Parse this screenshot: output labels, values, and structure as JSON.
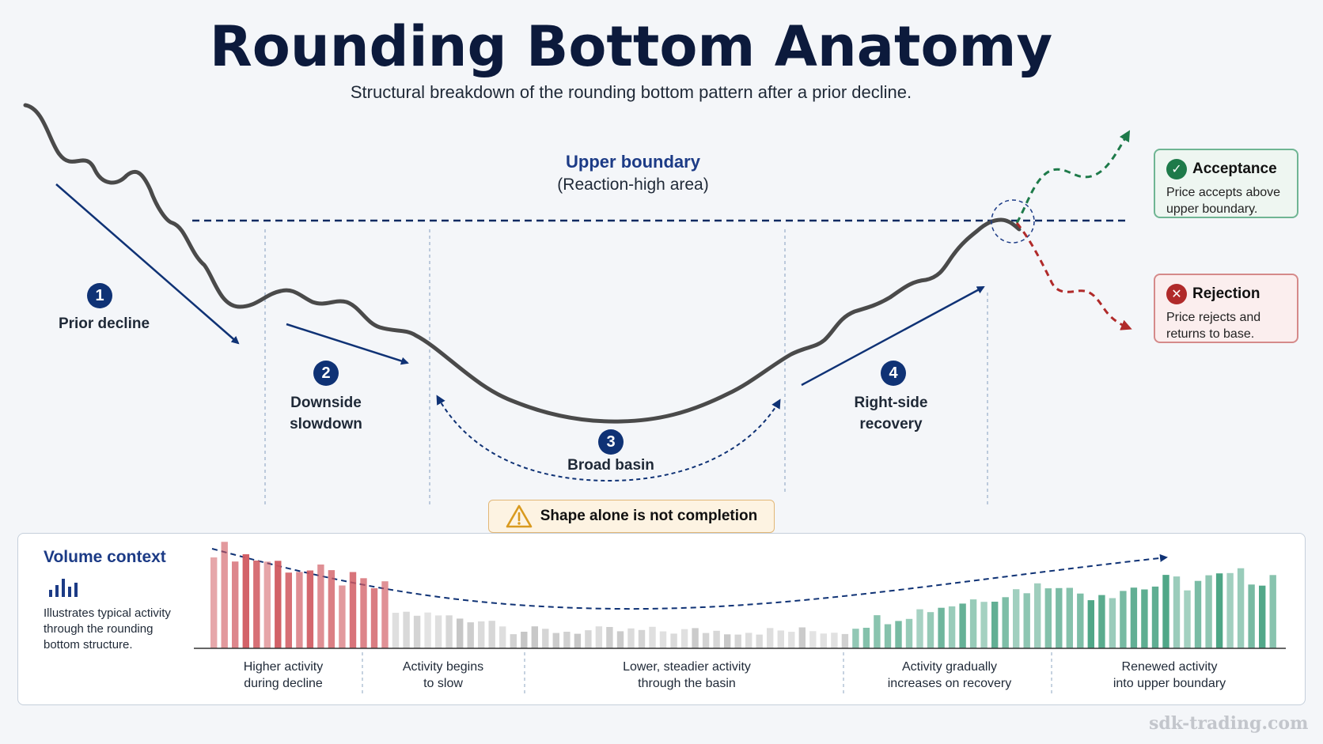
{
  "title": "Rounding Bottom Anatomy",
  "subtitle": "Structural breakdown of the rounding bottom pattern after a prior decline.",
  "upper_boundary": {
    "title": "Upper boundary",
    "subtitle": "(Reaction-high area)"
  },
  "steps": [
    {
      "number": "1",
      "label": "Prior decline"
    },
    {
      "number": "2",
      "label_line1": "Downside",
      "label_line2": "slowdown"
    },
    {
      "number": "3",
      "label": "Broad basin"
    },
    {
      "number": "4",
      "label_line1": "Right-side",
      "label_line2": "recovery"
    }
  ],
  "outcomes": {
    "acceptance": {
      "title": "Acceptance",
      "body_line1": "Price accepts above",
      "body_line2": "upper boundary.",
      "color": "#1e7a4a",
      "icon": "check-icon"
    },
    "rejection": {
      "title": "Rejection",
      "body_line1": "Price rejects and",
      "body_line2": "returns to base.",
      "color": "#b02a2a",
      "icon": "x-icon"
    }
  },
  "warning": {
    "text": "Shape alone is not completion",
    "icon": "warning-icon"
  },
  "volume": {
    "title": "Volume context",
    "icon": "bar-chart-icon",
    "description_line1": "Illustrates typical activity",
    "description_line2": "through the rounding",
    "description_line3": "bottom structure.",
    "phases": [
      {
        "line1": "Higher activity",
        "line2": "during decline"
      },
      {
        "line1": "Activity begins",
        "line2": "to slow"
      },
      {
        "line1": "Lower, steadier activity",
        "line2": "through the basin"
      },
      {
        "line1": "Activity gradually",
        "line2": "increases on recovery"
      },
      {
        "line1": "Renewed activity",
        "line2": "into upper boundary"
      }
    ]
  },
  "colors": {
    "navy": "#0f3275",
    "price_line": "#4a4a4a",
    "decline_volume": "#d0585f",
    "basin_volume": "#c2c2c2",
    "recovery_volume": "#3f9e7c",
    "acceptance": "#1e7a4a",
    "rejection": "#b02a2a"
  },
  "watermark": "sdk-trading.com"
}
